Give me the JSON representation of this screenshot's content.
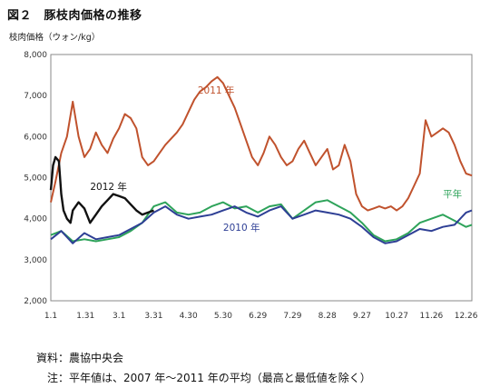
{
  "title": "図２　豚枝肉価格の推移",
  "source": "資料：農協中央会",
  "note": "注：平年値は、2007 年～2011 年の平均（最高と最低値を除く）",
  "chart_data": {
    "type": "line",
    "ylabel": "枝肉価格（ウォン/kg）",
    "ylim": [
      2000,
      8000
    ],
    "yticks": [
      "2,000",
      "3,000",
      "4,000",
      "5,000",
      "6,000",
      "7,000",
      "8,000"
    ],
    "ytick_values": [
      2000,
      3000,
      4000,
      5000,
      6000,
      7000,
      8000
    ],
    "xlim": [
      1,
      365
    ],
    "xticks": [
      "1.1",
      "1.31",
      "3.1",
      "3.31",
      "4.30",
      "5.30",
      "6.29",
      "7.29",
      "8.28",
      "9.27",
      "10.27",
      "11.26",
      "12.26"
    ],
    "xtick_days": [
      1,
      31,
      60,
      90,
      120,
      150,
      180,
      210,
      240,
      270,
      300,
      330,
      360
    ],
    "grid": false,
    "series": [
      {
        "name": "2011 年",
        "color": "#c0522d",
        "x": [
          1,
          5,
          10,
          15,
          20,
          25,
          30,
          35,
          40,
          45,
          50,
          55,
          60,
          65,
          70,
          75,
          80,
          85,
          90,
          95,
          100,
          105,
          110,
          115,
          120,
          125,
          130,
          135,
          140,
          145,
          150,
          155,
          160,
          165,
          170,
          175,
          180,
          185,
          190,
          195,
          200,
          205,
          210,
          215,
          220,
          225,
          230,
          235,
          240,
          245,
          250,
          255,
          260,
          265,
          270,
          275,
          280,
          285,
          290,
          295,
          300,
          305,
          310,
          315,
          320,
          325,
          330,
          335,
          340,
          345,
          350,
          355,
          360,
          365
        ],
        "values": [
          4400,
          4900,
          5600,
          6000,
          6850,
          6000,
          5500,
          5700,
          6100,
          5800,
          5600,
          5950,
          6200,
          6550,
          6450,
          6200,
          5500,
          5300,
          5400,
          5600,
          5800,
          5950,
          6100,
          6300,
          6600,
          6900,
          7100,
          7200,
          7350,
          7450,
          7300,
          7000,
          6700,
          6300,
          5900,
          5500,
          5300,
          5600,
          6000,
          5800,
          5500,
          5300,
          5400,
          5700,
          5900,
          5600,
          5300,
          5500,
          5700,
          5200,
          5300,
          5800,
          5400,
          4600,
          4300,
          4200,
          4250,
          4300,
          4250,
          4300,
          4200,
          4300,
          4500,
          4800,
          5100,
          6400,
          6000,
          6100,
          6200,
          6100,
          5800,
          5400,
          5100,
          5050
        ]
      },
      {
        "name": "2012 年",
        "color": "#111111",
        "x": [
          1,
          3,
          5,
          8,
          10,
          12,
          15,
          18,
          20,
          25,
          30,
          35,
          40,
          45,
          50,
          55,
          60,
          65,
          70,
          75,
          80,
          85,
          90
        ],
        "values": [
          4700,
          5300,
          5500,
          5400,
          4600,
          4200,
          4000,
          3900,
          4200,
          4400,
          4250,
          3900,
          4100,
          4300,
          4450,
          4600,
          4550,
          4500,
          4350,
          4200,
          4100,
          4150,
          4200
        ]
      },
      {
        "name": "2010 年",
        "color": "#2e3f95",
        "x": [
          1,
          10,
          20,
          30,
          40,
          50,
          60,
          70,
          80,
          90,
          100,
          110,
          120,
          130,
          140,
          150,
          160,
          170,
          180,
          190,
          200,
          210,
          220,
          230,
          240,
          250,
          260,
          270,
          280,
          290,
          300,
          310,
          320,
          330,
          340,
          350,
          360,
          365
        ],
        "values": [
          3500,
          3700,
          3400,
          3650,
          3500,
          3550,
          3600,
          3750,
          3900,
          4150,
          4300,
          4100,
          4000,
          4050,
          4100,
          4200,
          4300,
          4150,
          4050,
          4200,
          4300,
          4000,
          4100,
          4200,
          4150,
          4100,
          4000,
          3800,
          3550,
          3400,
          3450,
          3600,
          3750,
          3700,
          3800,
          3850,
          4150,
          4200
        ]
      },
      {
        "name": "平年",
        "color": "#2ea35a",
        "x": [
          1,
          10,
          20,
          30,
          40,
          50,
          60,
          70,
          80,
          90,
          100,
          110,
          120,
          130,
          140,
          150,
          160,
          170,
          180,
          190,
          200,
          210,
          220,
          230,
          240,
          250,
          260,
          270,
          280,
          290,
          300,
          310,
          320,
          330,
          340,
          350,
          360,
          365
        ],
        "values": [
          3600,
          3700,
          3450,
          3500,
          3450,
          3500,
          3550,
          3700,
          3900,
          4300,
          4400,
          4150,
          4100,
          4150,
          4300,
          4400,
          4250,
          4300,
          4150,
          4300,
          4350,
          4000,
          4200,
          4400,
          4450,
          4300,
          4150,
          3900,
          3600,
          3450,
          3500,
          3650,
          3900,
          4000,
          4100,
          3950,
          3800,
          3850
        ]
      }
    ]
  }
}
